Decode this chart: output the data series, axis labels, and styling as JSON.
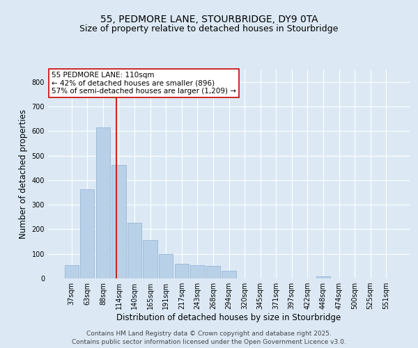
{
  "title1": "55, PEDMORE LANE, STOURBRIDGE, DY9 0TA",
  "title2": "Size of property relative to detached houses in Stourbridge",
  "xlabel": "Distribution of detached houses by size in Stourbridge",
  "ylabel": "Number of detached properties",
  "categories": [
    "37sqm",
    "63sqm",
    "88sqm",
    "114sqm",
    "140sqm",
    "165sqm",
    "191sqm",
    "217sqm",
    "243sqm",
    "268sqm",
    "294sqm",
    "320sqm",
    "345sqm",
    "371sqm",
    "397sqm",
    "422sqm",
    "448sqm",
    "474sqm",
    "500sqm",
    "525sqm",
    "551sqm"
  ],
  "values": [
    55,
    362,
    616,
    462,
    228,
    157,
    100,
    60,
    55,
    50,
    30,
    0,
    0,
    0,
    0,
    0,
    8,
    0,
    0,
    0,
    0
  ],
  "bar_color": "#b8d0e8",
  "bar_edge_color": "#9ab8d4",
  "vline_color": "#cc0000",
  "annotation_line1": "55 PEDMORE LANE: 110sqm",
  "annotation_line2": "← 42% of detached houses are smaller (896)",
  "annotation_line3": "57% of semi-detached houses are larger (1,209) →",
  "annotation_box_color": "#ffffff",
  "annotation_box_edge": "#cc0000",
  "ylim": [
    0,
    850
  ],
  "yticks": [
    0,
    100,
    200,
    300,
    400,
    500,
    600,
    700,
    800
  ],
  "background_color": "#dce9f5",
  "plot_bg_color": "#dce9f5",
  "footer1": "Contains HM Land Registry data © Crown copyright and database right 2025.",
  "footer2": "Contains public sector information licensed under the Open Government Licence v3.0.",
  "grid_color": "#ffffff",
  "title_fontsize": 10,
  "subtitle_fontsize": 9,
  "tick_fontsize": 7,
  "label_fontsize": 8.5,
  "footer_fontsize": 6.5
}
